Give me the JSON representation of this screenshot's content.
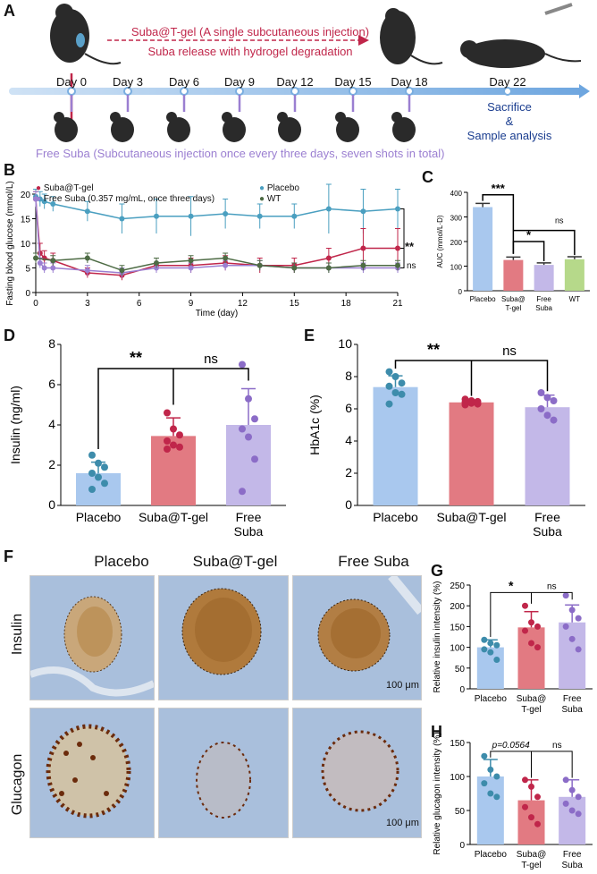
{
  "panelA": {
    "label": "A",
    "gel_line1": "Suba@T-gel (A single subcutaneous injection)",
    "gel_line2": "Suba release with hydrogel degradation",
    "days": [
      "Day 0",
      "Day 3",
      "Day 6",
      "Day 9",
      "Day 12",
      "Day 15",
      "Day 18",
      "Day 22"
    ],
    "end_label": [
      "Sacrifice",
      "&",
      "Sample analysis"
    ],
    "free_text": "Free Suba (Subcutaneous injection once every three days, seven shots in total)",
    "colors": {
      "gel": "#c0264a",
      "free": "#9b7fd1",
      "timeline": "#7aaee0"
    }
  },
  "panelB": {
    "label": "B",
    "legend": [
      "Suba@T-gel",
      "Free Suba (0.357 mg/mL, once three days)",
      "Placebo",
      "WT"
    ],
    "sig_upper": "**",
    "sig_lower": "ns"
  },
  "panelC": {
    "label": "C",
    "sig1": "***",
    "sig2": "*",
    "sig3": "ns"
  },
  "panelD": {
    "label": "D",
    "sig1": "**",
    "sig2": "ns"
  },
  "panelE": {
    "label": "E",
    "sig1": "**",
    "sig2": "ns"
  },
  "panelF": {
    "label": "F",
    "columns": [
      "Placebo",
      "Suba@T-gel",
      "Free Suba"
    ],
    "rows": [
      "Insulin",
      "Glucagon"
    ],
    "scale_bar": "100 μm"
  },
  "panelG": {
    "label": "G",
    "sig1": "*",
    "sig2": "ns"
  },
  "panelH": {
    "label": "H",
    "sig1": "p=0.0564",
    "sig2": "ns"
  },
  "chart_data": [
    {
      "id": "B",
      "type": "line",
      "title": "",
      "xlabel": "Time (day)",
      "ylabel": "Fasting blood glucose (mmol/L)",
      "xlim": [
        0,
        21
      ],
      "ylim": [
        0,
        20
      ],
      "xticks": [
        0,
        3,
        6,
        9,
        12,
        15,
        18,
        21
      ],
      "yticks": [
        0,
        5,
        10,
        15,
        20
      ],
      "series": [
        {
          "name": "Placebo",
          "color": "#4a9fc0",
          "x": [
            0,
            0.25,
            0.5,
            1,
            3,
            5,
            7,
            9,
            11,
            13,
            15,
            17,
            19,
            21
          ],
          "y": [
            19.5,
            19,
            18.5,
            18,
            16.5,
            15,
            15.5,
            15.5,
            16,
            15.5,
            15.5,
            17,
            16.5,
            17
          ],
          "err": [
            1.5,
            1.5,
            1.5,
            1.5,
            2,
            3,
            3.5,
            4,
            3,
            2.5,
            2.5,
            5,
            4.5,
            4
          ]
        },
        {
          "name": "Suba@T-gel",
          "color": "#c0264a",
          "x": [
            0,
            0.25,
            0.5,
            1,
            3,
            5,
            7,
            9,
            11,
            13,
            15,
            17,
            19,
            21
          ],
          "y": [
            19,
            8,
            7,
            6.5,
            4,
            3.5,
            5.5,
            5.5,
            6,
            5.5,
            5.5,
            7,
            9,
            9
          ],
          "err": [
            1.5,
            2,
            1.5,
            1.5,
            1,
            1,
            1.5,
            1.5,
            1.5,
            1.5,
            1.5,
            2,
            4,
            4
          ]
        },
        {
          "name": "Free Suba (0.357 mg/mL, once three days)",
          "color": "#9b7fd1",
          "x": [
            0,
            0.25,
            0.5,
            1,
            3,
            5,
            7,
            9,
            11,
            13,
            15,
            17,
            19,
            21
          ],
          "y": [
            19,
            6,
            5,
            5,
            4.5,
            4,
            5,
            5,
            5.5,
            5.5,
            5,
            5,
            5,
            5
          ],
          "err": [
            1.5,
            1,
            1,
            1,
            1,
            1,
            1,
            1,
            1,
            1,
            1,
            1,
            1,
            1
          ]
        },
        {
          "name": "WT",
          "color": "#4d6b44",
          "x": [
            0,
            1,
            3,
            5,
            7,
            9,
            11,
            13,
            15,
            17,
            19,
            21
          ],
          "y": [
            7,
            6.5,
            7,
            4.5,
            6,
            6.5,
            7,
            5.5,
            5,
            5,
            5.5,
            5.5
          ],
          "err": [
            1,
            1,
            1,
            1,
            1,
            1,
            1,
            1,
            1,
            1,
            1,
            1
          ]
        }
      ]
    },
    {
      "id": "C",
      "type": "bar",
      "ylabel": "AUC (mmol/L·D)",
      "categories": [
        "Placebo",
        "Suba@\nT-gel",
        "Free\nSuba",
        "WT"
      ],
      "values": [
        340,
        125,
        105,
        128
      ],
      "err": [
        15,
        12,
        8,
        10
      ],
      "colors": [
        "#a9c8ee",
        "#e27a82",
        "#c3b8e8",
        "#b6d98a"
      ],
      "ylim": [
        0,
        400
      ],
      "yticks": [
        0,
        100,
        200,
        300,
        400
      ]
    },
    {
      "id": "D",
      "type": "bar",
      "ylabel": "Insulin (ng/ml)",
      "categories": [
        "Placebo",
        "Suba@T-gel",
        "Free\nSuba"
      ],
      "values": [
        1.6,
        3.45,
        4.0
      ],
      "err": [
        0.55,
        0.9,
        1.8
      ],
      "colors": [
        "#a9c8ee",
        "#e27a82",
        "#c3b8e8"
      ],
      "points": [
        [
          2.5,
          2.1,
          1.9,
          1.6,
          1.4,
          1.1,
          0.8
        ],
        [
          4.6,
          3.8,
          3.5,
          3.2,
          3.0,
          2.9,
          2.8
        ],
        [
          7.0,
          5.3,
          4.3,
          3.8,
          3.4,
          2.3,
          0.7
        ]
      ],
      "pointColors": [
        "#3d8cab",
        "#c0264a",
        "#8b6cc7"
      ],
      "ylim": [
        0,
        8
      ],
      "yticks": [
        0,
        2,
        4,
        6,
        8
      ]
    },
    {
      "id": "E",
      "type": "bar",
      "ylabel": "HbA1c (%)",
      "categories": [
        "Placebo",
        "Suba@T-gel",
        "Free\nSuba"
      ],
      "values": [
        7.35,
        6.4,
        6.1
      ],
      "err": [
        0.7,
        0.15,
        0.75
      ],
      "colors": [
        "#a9c8ee",
        "#e27a82",
        "#c3b8e8"
      ],
      "points": [
        [
          8.3,
          8.0,
          7.6,
          7.4,
          7.0,
          6.9,
          6.3
        ],
        [
          6.6,
          6.5,
          6.45,
          6.4,
          6.35,
          6.3,
          6.25
        ],
        [
          7.0,
          6.7,
          6.5,
          6.0,
          5.6,
          5.3
        ]
      ],
      "pointColors": [
        "#3d8cab",
        "#c0264a",
        "#8b6cc7"
      ],
      "ylim": [
        0,
        10
      ],
      "yticks": [
        0,
        2,
        4,
        6,
        8,
        10
      ]
    },
    {
      "id": "G",
      "type": "bar",
      "ylabel": "Relative insulin intensity (%)",
      "categories": [
        "Placebo",
        "Suba@\nT-gel",
        "Free\nSuba"
      ],
      "values": [
        100,
        148,
        160
      ],
      "err": [
        18,
        38,
        42
      ],
      "colors": [
        "#a9c8ee",
        "#e27a82",
        "#c3b8e8"
      ],
      "points": [
        [
          118,
          110,
          105,
          95,
          88,
          70
        ],
        [
          200,
          160,
          150,
          140,
          110,
          100
        ],
        [
          225,
          190,
          170,
          150,
          120,
          95
        ]
      ],
      "pointColors": [
        "#3d8cab",
        "#c0264a",
        "#8b6cc7"
      ],
      "ylim": [
        0,
        250
      ],
      "yticks": [
        0,
        50,
        100,
        150,
        200,
        250
      ],
      "yticklabels": [
        "0",
        "50",
        "100",
        "150",
        "200",
        "250"
      ]
    },
    {
      "id": "H",
      "type": "bar",
      "ylabel": "Relative glucagon intensity (%)",
      "categories": [
        "Placebo",
        "Suba@\nT-gel",
        "Free\nSuba"
      ],
      "values": [
        100,
        65,
        70
      ],
      "err": [
        25,
        30,
        25
      ],
      "colors": [
        "#a9c8ee",
        "#e27a82",
        "#c3b8e8"
      ],
      "points": [
        [
          130,
          110,
          100,
          90,
          75,
          70
        ],
        [
          95,
          85,
          70,
          55,
          40,
          30
        ],
        [
          95,
          80,
          70,
          60,
          50,
          45
        ]
      ],
      "pointColors": [
        "#3d8cab",
        "#c0264a",
        "#8b6cc7"
      ],
      "ylim": [
        0,
        150
      ],
      "yticks": [
        0,
        50,
        100,
        150
      ],
      "yticklabels": [
        "0",
        "50",
        "100",
        "150"
      ]
    }
  ]
}
